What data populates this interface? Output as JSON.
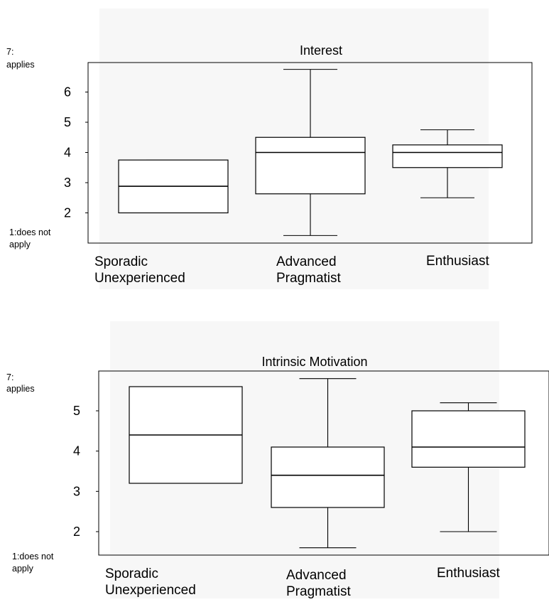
{
  "chart_data": [
    {
      "type": "box",
      "title": "Interest",
      "y_top_label": [
        "7:",
        "applies"
      ],
      "y_bottom_label": [
        "1:does not",
        "apply"
      ],
      "yticks": [
        2,
        3,
        4,
        5,
        6
      ],
      "ylim": [
        1.0,
        7.0
      ],
      "categories": [
        [
          "Sporadic",
          "Unexperienced"
        ],
        [
          "Advanced",
          "Pragmatist"
        ],
        [
          "Enthusiast"
        ]
      ],
      "boxes": [
        {
          "whisker_low": 2.0,
          "q1": 2.0,
          "median": 2.88,
          "q3": 3.75,
          "whisker_high": 3.75
        },
        {
          "whisker_low": 1.25,
          "q1": 2.63,
          "median": 4.0,
          "q3": 4.5,
          "whisker_high": 6.75
        },
        {
          "whisker_low": 2.5,
          "q1": 3.5,
          "median": 4.0,
          "q3": 4.25,
          "whisker_high": 4.75
        }
      ]
    },
    {
      "type": "box",
      "title": "Intrinsic Motivation",
      "y_top_label": [
        "7:",
        "applies"
      ],
      "y_bottom_label": [
        "1:does not",
        "apply"
      ],
      "yticks": [
        2,
        3,
        4,
        5
      ],
      "ylim": [
        1.3,
        6.1
      ],
      "categories": [
        [
          "Sporadic",
          "Unexperienced"
        ],
        [
          "Advanced",
          "Pragmatist"
        ],
        [
          "Enthusiast"
        ]
      ],
      "boxes": [
        {
          "whisker_low": 3.2,
          "q1": 3.2,
          "median": 4.4,
          "q3": 5.6,
          "whisker_high": 5.6
        },
        {
          "whisker_low": 1.6,
          "q1": 2.6,
          "median": 3.4,
          "q3": 4.1,
          "whisker_high": 5.8
        },
        {
          "whisker_low": 2.0,
          "q1": 3.6,
          "median": 4.1,
          "q3": 5.0,
          "whisker_high": 5.2
        }
      ]
    }
  ]
}
